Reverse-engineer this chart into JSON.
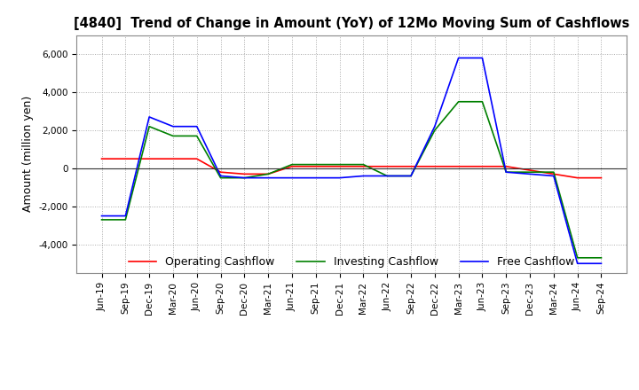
{
  "title": "[4840]  Trend of Change in Amount (YoY) of 12Mo Moving Sum of Cashflows",
  "ylabel": "Amount (million yen)",
  "background_color": "#ffffff",
  "grid_color": "#aaaaaa",
  "x_labels": [
    "Jun-19",
    "Sep-19",
    "Dec-19",
    "Mar-20",
    "Jun-20",
    "Sep-20",
    "Dec-20",
    "Mar-21",
    "Jun-21",
    "Sep-21",
    "Dec-21",
    "Mar-22",
    "Jun-22",
    "Sep-22",
    "Dec-22",
    "Mar-23",
    "Jun-23",
    "Sep-23",
    "Dec-23",
    "Mar-24",
    "Jun-24",
    "Sep-24"
  ],
  "operating": [
    500,
    500,
    500,
    500,
    500,
    -200,
    -300,
    -300,
    100,
    100,
    100,
    100,
    100,
    100,
    100,
    100,
    100,
    100,
    -100,
    -300,
    -500,
    -500
  ],
  "investing": [
    -2700,
    -2700,
    2200,
    1700,
    1700,
    -500,
    -500,
    -300,
    200,
    200,
    200,
    200,
    -400,
    -400,
    2000,
    3500,
    3500,
    -200,
    -200,
    -200,
    -4700,
    -4700
  ],
  "free": [
    -2500,
    -2500,
    2700,
    2200,
    2200,
    -400,
    -500,
    -500,
    -500,
    -500,
    -500,
    -400,
    -400,
    -400,
    2200,
    5800,
    5800,
    -200,
    -300,
    -400,
    -5000,
    -5000
  ],
  "ylim": [
    -5500,
    7000
  ],
  "yticks": [
    -4000,
    -2000,
    0,
    2000,
    4000,
    6000
  ],
  "operating_color": "#ff0000",
  "investing_color": "#008000",
  "free_color": "#0000ff"
}
